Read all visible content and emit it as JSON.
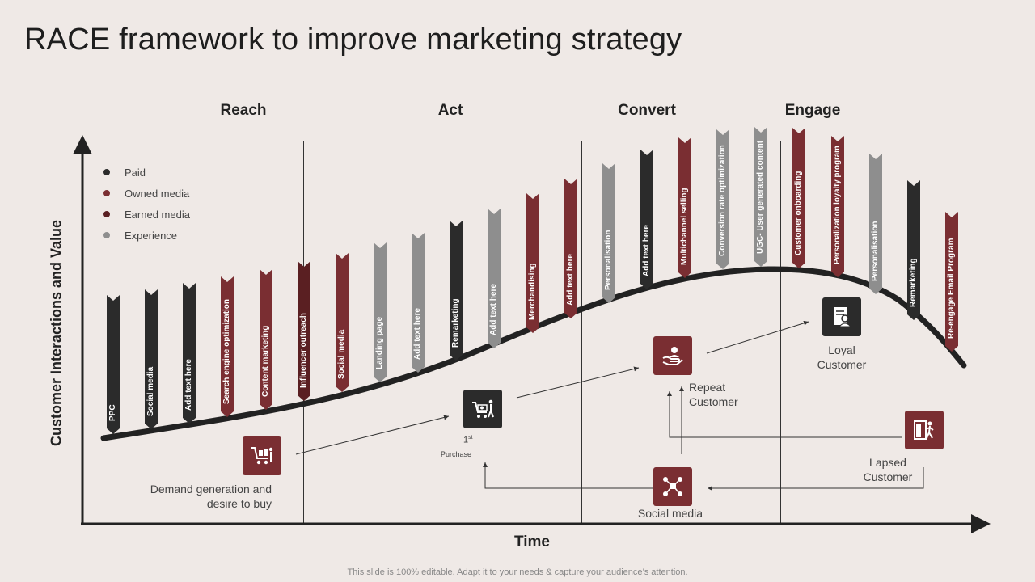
{
  "title": "RACE framework to improve marketing strategy",
  "phases": [
    "Reach",
    "Act",
    "Convert",
    "Engage"
  ],
  "legend": [
    {
      "label": "Paid",
      "color": "#2b2b2b"
    },
    {
      "label": "Owned media",
      "color": "#7a2e32"
    },
    {
      "label": "Earned media",
      "color": "#5a1f22"
    },
    {
      "label": "Experience",
      "color": "#8e8e8e"
    }
  ],
  "axes": {
    "y_label": "Customer Interactions and Value",
    "x_label": "Time"
  },
  "ribbons": [
    {
      "label": "PPC",
      "color": "#2b2b2b"
    },
    {
      "label": "Social media",
      "color": "#2b2b2b"
    },
    {
      "label": "Add text here",
      "color": "#2b2b2b"
    },
    {
      "label": "Search engine optimization",
      "color": "#7a2e32"
    },
    {
      "label": "Content marketing",
      "color": "#7a2e32"
    },
    {
      "label": "Influencer outreach",
      "color": "#5a1f22"
    },
    {
      "label": "Social media",
      "color": "#7a2e32"
    },
    {
      "label": "Landing page",
      "color": "#8e8e8e"
    },
    {
      "label": "Add text here",
      "color": "#8e8e8e"
    },
    {
      "label": "Remarketing",
      "color": "#2b2b2b"
    },
    {
      "label": "Add text here",
      "color": "#8e8e8e"
    },
    {
      "label": "Merchandising",
      "color": "#7a2e32"
    },
    {
      "label": "Add text here",
      "color": "#7a2e32"
    },
    {
      "label": "Personalisation",
      "color": "#8e8e8e"
    },
    {
      "label": "Add text here",
      "color": "#2b2b2b"
    },
    {
      "label": "Multichannel selling",
      "color": "#7a2e32"
    },
    {
      "label": "Conversion rate optimization",
      "color": "#8e8e8e"
    },
    {
      "label": "UGC- User generated content",
      "color": "#8e8e8e"
    },
    {
      "label": "Customer onboarding",
      "color": "#7a2e32"
    },
    {
      "label": "Personalization loyalty program",
      "color": "#7a2e32"
    },
    {
      "label": "Personalisation",
      "color": "#8e8e8e"
    },
    {
      "label": "Remarketing",
      "color": "#2b2b2b"
    },
    {
      "label": "Re-engage Email Program",
      "color": "#7a2e32"
    }
  ],
  "stages": {
    "demand": "Demand generation and desire to buy",
    "purchase_num": "1",
    "purchase_sup": "st",
    "purchase_label": "Purchase",
    "repeat": "Repeat Customer",
    "loyal": "Loyal Customer",
    "lapsed": "Lapsed Customer",
    "social": "Social media"
  },
  "colors": {
    "dark": "#2b2b2b",
    "maroon": "#7a2e32"
  },
  "footer": "This slide is 100% editable. Adapt it to your needs & capture your audience’s attention."
}
